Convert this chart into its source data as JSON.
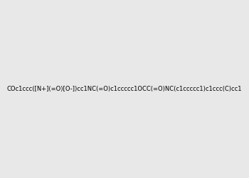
{
  "smiles": "COc1ccc([N+](=O)[O-])cc1NC(=O)c1ccccc1OCC(=O)NC(c1ccccc1)c1ccc(C)cc1",
  "image_size": 300,
  "background_color": "#e8e8e8",
  "bond_color": "#1a1a1a",
  "atom_colors": {
    "N": "#0000cd",
    "O": "#cc0000"
  }
}
